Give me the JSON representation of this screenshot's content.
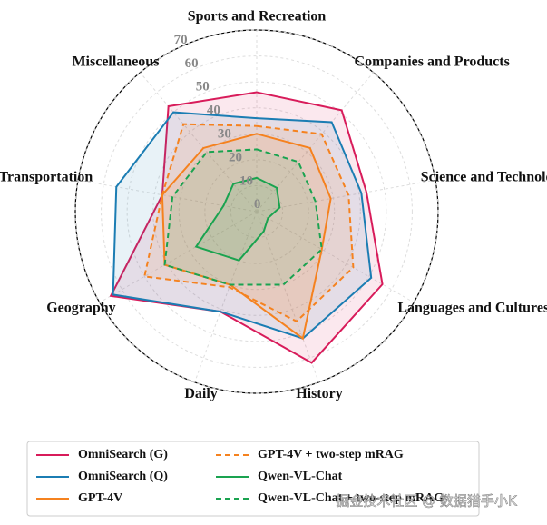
{
  "chart_data": {
    "type": "radar",
    "categories": [
      "Sports and Recreation",
      "Companies and Products",
      "Science and Technology",
      "Languages and Cultures",
      "History",
      "Daily",
      "Geography",
      "Transportation",
      "Miscellaneous"
    ],
    "ylim": [
      0,
      70
    ],
    "yticks": [
      0,
      10,
      20,
      30,
      40,
      50,
      60,
      70
    ],
    "grid": true,
    "series": [
      {
        "name": "OmniSearch (G)",
        "color": "#d81b5a",
        "linestyle": "solid",
        "values": [
          46,
          51,
          43,
          56,
          62,
          41,
          65,
          37,
          53
        ]
      },
      {
        "name": "OmniSearch (Q)",
        "color": "#1b7db3",
        "linestyle": "solid",
        "values": [
          36,
          45,
          41,
          51,
          52,
          41,
          64,
          55,
          50
        ]
      },
      {
        "name": "GPT-4V",
        "color": "#f5821f",
        "linestyle": "solid",
        "values": [
          30,
          32,
          29,
          29,
          52,
          30,
          41,
          37,
          32
        ]
      },
      {
        "name": "GPT-4V + two-step mRAG",
        "color": "#f5821f",
        "linestyle": "dashed",
        "values": [
          33,
          39,
          36,
          43,
          45,
          31,
          50,
          37,
          44
        ]
      },
      {
        "name": "Qwen-VL-Chat",
        "color": "#1aa350",
        "linestyle": "solid",
        "values": [
          13,
          12,
          9,
          5,
          8,
          20,
          27,
          13,
          14
        ]
      },
      {
        "name": "Qwen-VL-Chat + two-step mRAG",
        "color": "#1aa350",
        "linestyle": "dashed",
        "values": [
          24,
          25,
          23,
          29,
          30,
          30,
          41,
          33,
          30
        ]
      }
    ],
    "watermark": "掘金技术社区 @ 数据猎手小K"
  }
}
